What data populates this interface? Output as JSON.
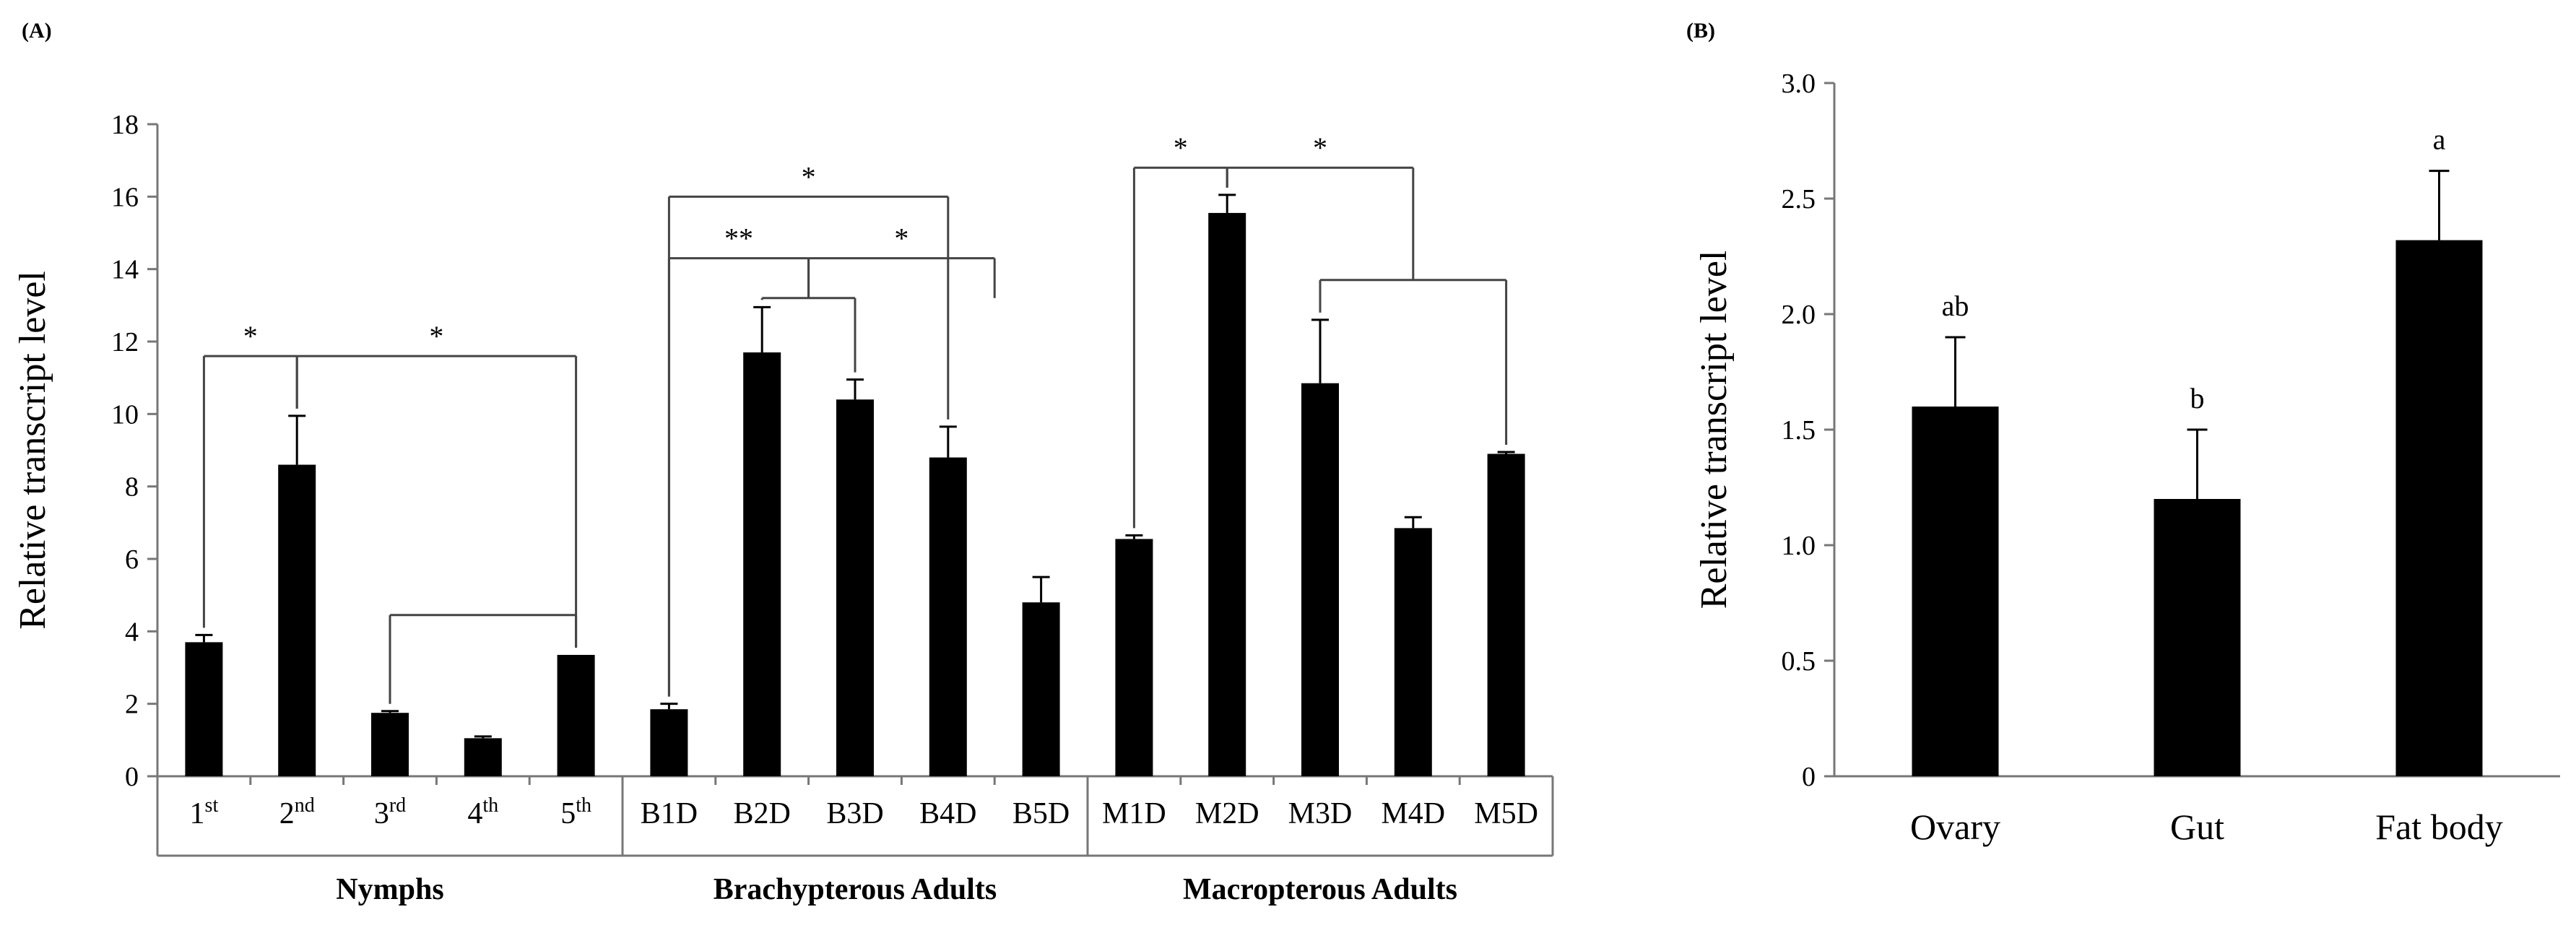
{
  "chart_data": [
    {
      "panel": "(A)",
      "type": "bar",
      "ylabel": "Relative transcript level",
      "ylim": [
        0,
        18
      ],
      "yticks": [
        "0",
        "2",
        "4",
        "6",
        "8",
        "10",
        "12",
        "14",
        "16",
        "18"
      ],
      "categories": [
        {
          "base": "1",
          "sup": "st"
        },
        {
          "base": "2",
          "sup": "nd"
        },
        {
          "base": "3",
          "sup": "rd"
        },
        {
          "base": "4",
          "sup": "th"
        },
        {
          "base": "5",
          "sup": "th"
        },
        {
          "base": "B1D",
          "sup": ""
        },
        {
          "base": "B2D",
          "sup": ""
        },
        {
          "base": "B3D",
          "sup": ""
        },
        {
          "base": "B4D",
          "sup": ""
        },
        {
          "base": "B5D",
          "sup": ""
        },
        {
          "base": "M1D",
          "sup": ""
        },
        {
          "base": "M2D",
          "sup": ""
        },
        {
          "base": "M3D",
          "sup": ""
        },
        {
          "base": "M4D",
          "sup": ""
        },
        {
          "base": "M5D",
          "sup": ""
        }
      ],
      "values": [
        3.7,
        8.6,
        1.75,
        1.05,
        3.35,
        1.85,
        11.7,
        10.4,
        8.8,
        4.8,
        6.55,
        15.55,
        10.85,
        6.85,
        8.9
      ],
      "errors": [
        0.2,
        1.35,
        0.05,
        0.05,
        0.0,
        0.15,
        1.25,
        0.55,
        0.85,
        0.7,
        0.1,
        0.5,
        1.75,
        0.3,
        0.05
      ],
      "groups": [
        {
          "label": "Nymphs",
          "start": 0,
          "end": 4
        },
        {
          "label": "Brachypterous Adults",
          "start": 5,
          "end": 9
        },
        {
          "label": "Macropterous Adults",
          "start": 10,
          "end": 14
        }
      ],
      "significance": [
        {
          "label": "*",
          "from": [
            0
          ],
          "to": [
            1
          ],
          "level": 11.6
        },
        {
          "label": "*",
          "from": [
            1
          ],
          "to": [
            4
          ],
          "level": 11.6
        },
        {
          "label": "*",
          "from": [
            5
          ],
          "to": [
            8
          ],
          "level": 16.0
        },
        {
          "label": "**",
          "from": [
            5
          ],
          "to": [
            6,
            7
          ],
          "level": 14.3
        },
        {
          "label": "*",
          "from": [
            6,
            7
          ],
          "to": [
            8,
            9
          ],
          "level": 14.3
        },
        {
          "label": "*",
          "from": [
            10
          ],
          "to": [
            11
          ],
          "level": 16.8
        },
        {
          "label": "*",
          "from": [
            11
          ],
          "to": [
            12,
            13,
            14
          ],
          "level": 16.8
        }
      ],
      "brackets": [
        {
          "cats": [
            2,
            4
          ],
          "level": 4.45
        },
        {
          "cats": [
            12,
            14
          ],
          "level": 13.7
        },
        {
          "cats": [
            6,
            7
          ],
          "level": 13.2
        }
      ]
    },
    {
      "panel": "(B)",
      "type": "bar",
      "ylabel": "Relative transcript level",
      "ylim": [
        0,
        3.0
      ],
      "yticks": [
        "0",
        "0.5",
        "1.0",
        "1.5",
        "2.0",
        "2.5",
        "3.0"
      ],
      "categories": [
        "Ovary",
        "Gut",
        "Fat body"
      ],
      "values": [
        1.6,
        1.2,
        2.32
      ],
      "errors": [
        0.3,
        0.3,
        0.3
      ],
      "letters": [
        "ab",
        "b",
        "a"
      ]
    }
  ]
}
